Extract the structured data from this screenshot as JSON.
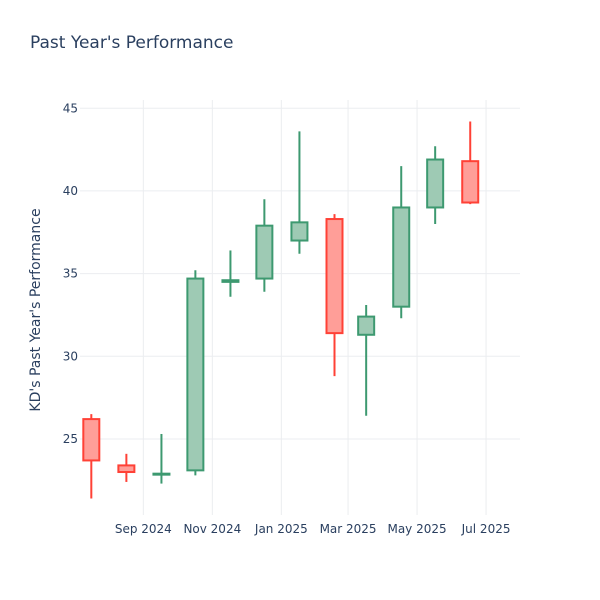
{
  "chart_data": {
    "type": "candlestick",
    "title": "Past Year's Performance",
    "ylabel": "KD's Past Year's Performance",
    "xlabel": "",
    "ylim": [
      20.4,
      45.5
    ],
    "y_ticks": [
      25,
      30,
      35,
      40,
      45
    ],
    "x_range": [
      "2024-07-07",
      "2025-07-31"
    ],
    "x_ticks": [
      {
        "date": "2024-09-01",
        "label": "Sep 2024"
      },
      {
        "date": "2024-11-01",
        "label": "Nov 2024"
      },
      {
        "date": "2025-01-01",
        "label": "Jan 2025"
      },
      {
        "date": "2025-03-01",
        "label": "Mar 2025"
      },
      {
        "date": "2025-05-01",
        "label": "May 2025"
      },
      {
        "date": "2025-07-01",
        "label": "Jul 2025"
      }
    ],
    "grid": true,
    "increasing_color": "#3d9970",
    "increasing_fill": "#9ecab4",
    "decreasing_color": "#ff4136",
    "decreasing_fill": "#ff9e98",
    "candles": [
      {
        "date": "2024-07-17",
        "open": 26.2,
        "high": 26.5,
        "low": 21.4,
        "close": 23.7
      },
      {
        "date": "2024-08-17",
        "open": 23.4,
        "high": 24.1,
        "low": 22.4,
        "close": 23.0
      },
      {
        "date": "2024-09-17",
        "open": 22.9,
        "high": 25.3,
        "low": 22.3,
        "close": 22.9
      },
      {
        "date": "2024-10-17",
        "open": 23.1,
        "high": 35.2,
        "low": 22.8,
        "close": 34.7
      },
      {
        "date": "2024-11-17",
        "open": 34.5,
        "high": 36.4,
        "low": 33.6,
        "close": 34.6
      },
      {
        "date": "2024-12-17",
        "open": 34.7,
        "high": 39.5,
        "low": 33.9,
        "close": 37.9
      },
      {
        "date": "2025-01-17",
        "open": 37.0,
        "high": 43.6,
        "low": 36.2,
        "close": 38.1
      },
      {
        "date": "2025-02-17",
        "open": 38.3,
        "high": 38.6,
        "low": 28.8,
        "close": 31.4
      },
      {
        "date": "2025-03-17",
        "open": 31.3,
        "high": 33.1,
        "low": 26.4,
        "close": 32.4
      },
      {
        "date": "2025-04-17",
        "open": 33.0,
        "high": 41.5,
        "low": 32.3,
        "close": 39.0
      },
      {
        "date": "2025-05-17",
        "open": 39.0,
        "high": 42.7,
        "low": 38.0,
        "close": 41.9
      },
      {
        "date": "2025-06-17",
        "open": 41.8,
        "high": 44.2,
        "low": 39.2,
        "close": 39.3
      }
    ]
  }
}
